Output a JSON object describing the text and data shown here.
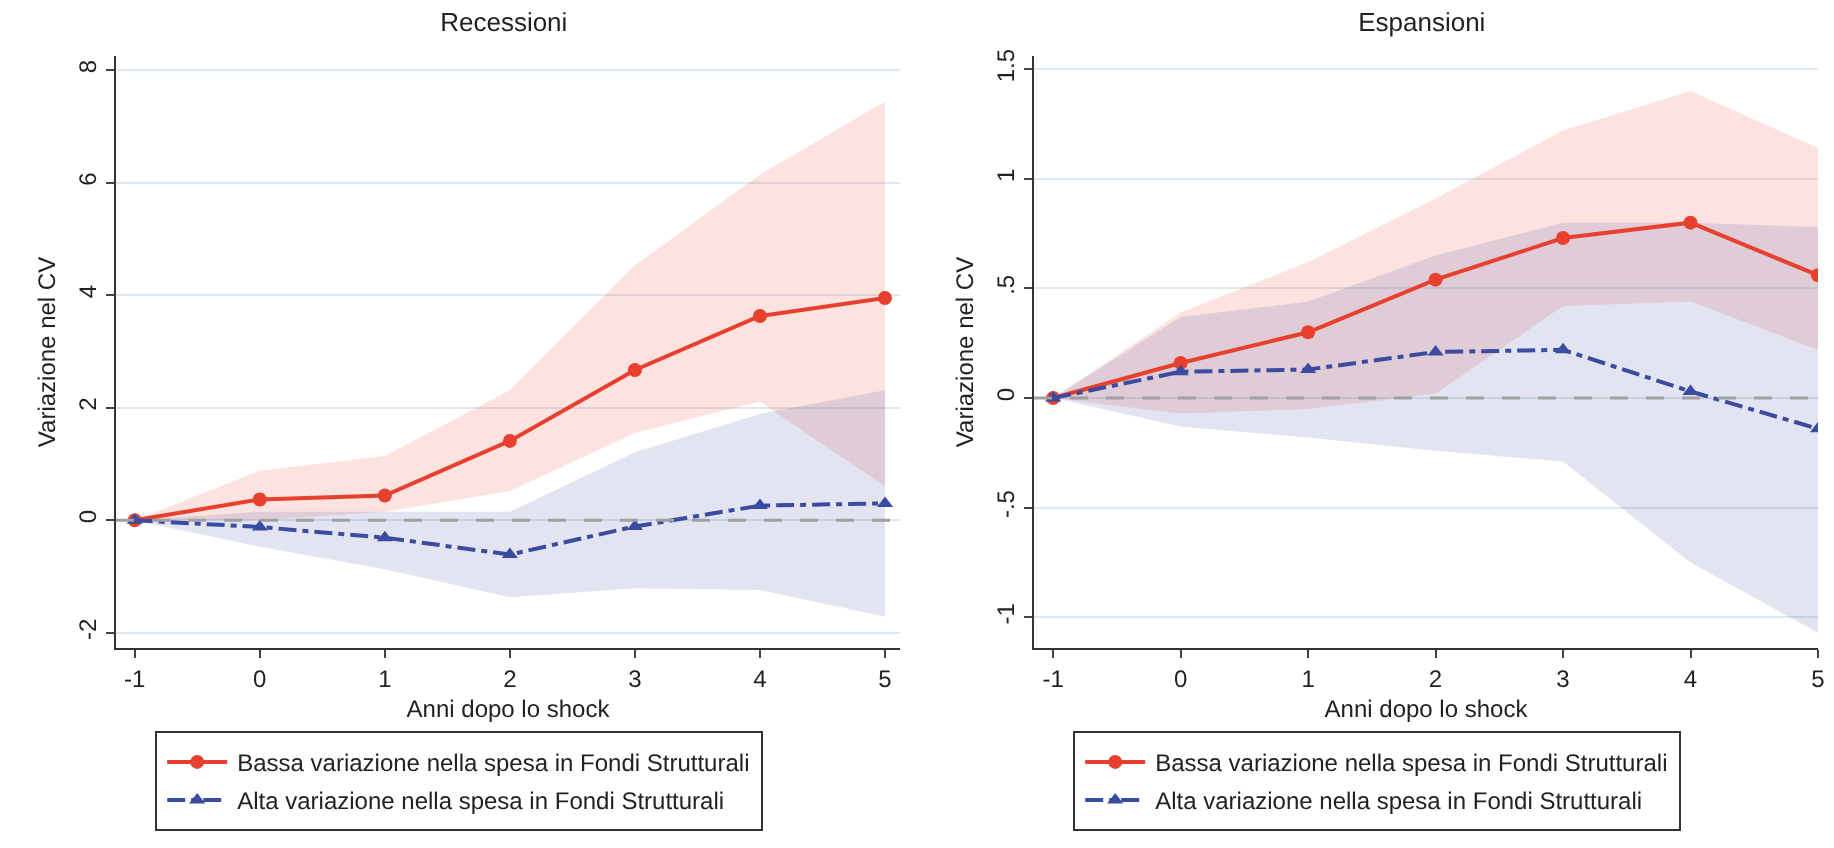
{
  "chart_data": [
    {
      "type": "line",
      "title": "Recessioni",
      "xlabel": "Anni dopo lo shock",
      "ylabel": "Variazione nel CV",
      "x": [
        -1,
        0,
        1,
        2,
        3,
        4,
        5
      ],
      "xlim": [
        -1.15,
        5.12
      ],
      "xticks": [
        -1,
        0,
        1,
        2,
        3,
        4,
        5
      ],
      "ylim": [
        -2.27,
        8.25
      ],
      "yticks": [
        -2,
        0,
        2,
        4,
        6,
        8
      ],
      "grid": "y",
      "legend": "bottom",
      "ref_lines": [
        {
          "axis": "y",
          "value": 0,
          "color": "#a0a0a0",
          "line_style": "dashed"
        }
      ],
      "series": [
        {
          "name": "Bassa variazione nella spesa in Fondi Strutturali",
          "color": "#e8402e",
          "marker": "circle",
          "line_style": "solid",
          "values": [
            0,
            0.37,
            0.44,
            1.41,
            2.67,
            3.63,
            3.95
          ],
          "lower": [
            0,
            0,
            0.15,
            0.52,
            1.55,
            2.11,
            0.6
          ],
          "upper": [
            0,
            0.88,
            1.14,
            2.31,
            4.53,
            6.14,
            7.44
          ]
        },
        {
          "name": "Alta variazione nella spesa in Fondi Strutturali",
          "color": "#3a4ba0",
          "marker": "triangle",
          "line_style": "dashed",
          "values": [
            0,
            -0.12,
            -0.31,
            -0.61,
            -0.11,
            0.26,
            0.3
          ],
          "lower": [
            0,
            -0.47,
            -0.87,
            -1.37,
            -1.21,
            -1.24,
            -1.71
          ],
          "upper": [
            0,
            0.15,
            0.15,
            0.15,
            1.21,
            1.89,
            2.31
          ]
        }
      ]
    },
    {
      "type": "line",
      "title": "Espansioni",
      "xlabel": "Anni dopo lo shock",
      "ylabel": "Variazione nel CV",
      "x": [
        -1,
        0,
        1,
        2,
        3,
        4,
        5
      ],
      "xlim": [
        -1.15,
        5
      ],
      "xticks": [
        -1,
        0,
        1,
        2,
        3,
        4,
        5
      ],
      "ylim": [
        -1.14,
        1.56
      ],
      "yticks": [
        {
          "value": -1,
          "label": "-1"
        },
        {
          "value": -0.5,
          "label": "-.5"
        },
        0,
        {
          "value": 0.5,
          "label": ".5"
        },
        1,
        1.5
      ],
      "grid": "y",
      "legend": "bottom",
      "ref_lines": [
        {
          "axis": "y",
          "value": 0,
          "color": "#a0a0a0",
          "line_style": "dashed"
        }
      ],
      "series": [
        {
          "name": "Bassa variazione nella spesa in Fondi Strutturali",
          "color": "#e8402e",
          "marker": "circle",
          "line_style": "solid",
          "values": [
            0,
            0.16,
            0.3,
            0.54,
            0.73,
            0.8,
            0.56
          ],
          "lower": [
            0,
            -0.07,
            -0.05,
            0.02,
            0.42,
            0.44,
            0.22
          ],
          "upper": [
            0,
            0.39,
            0.62,
            0.91,
            1.22,
            1.4,
            1.14
          ]
        },
        {
          "name": "Alta variazione nella spesa in Fondi Strutturali",
          "color": "#3a4ba0",
          "marker": "triangle",
          "line_style": "dashed",
          "values": [
            0,
            0.12,
            0.13,
            0.21,
            0.22,
            0.03,
            -0.14
          ],
          "lower": [
            0,
            -0.13,
            -0.18,
            -0.24,
            -0.29,
            -0.75,
            -1.07
          ],
          "upper": [
            0,
            0.37,
            0.44,
            0.65,
            0.8,
            0.8,
            0.78
          ]
        }
      ]
    }
  ]
}
